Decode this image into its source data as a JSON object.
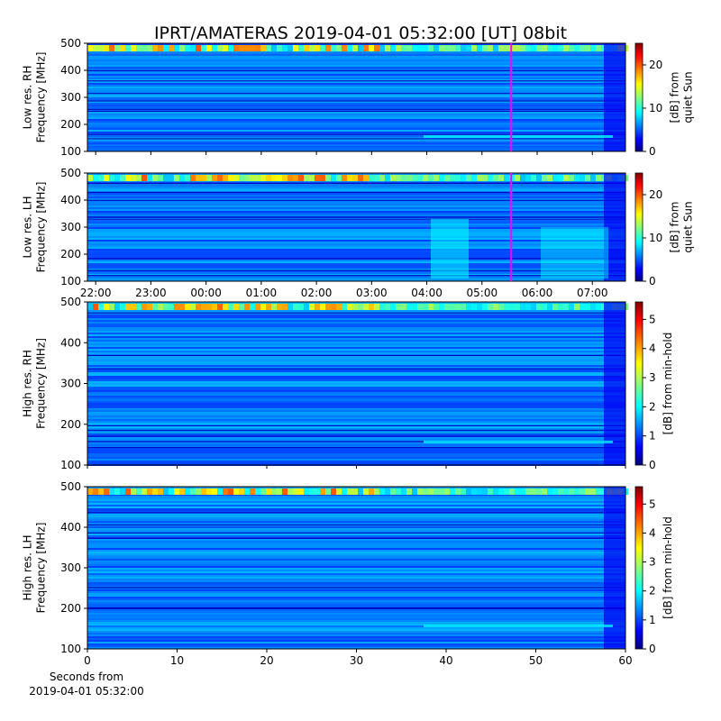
{
  "chart_data": [
    {
      "type": "spectrogram",
      "title": "IPRT/AMATERAS 2019-04-01 05:32:00 [UT]   08bit",
      "ylabel": "Low res. RH\nFrequency [MHz]",
      "ylim": [
        100,
        500
      ],
      "yticks": [
        100,
        200,
        300,
        400,
        500
      ],
      "xlim": [
        21.85,
        31.6
      ],
      "marker": {
        "x": 29.53,
        "color": "#ff00ff"
      },
      "colormap": "jet",
      "clim": [
        0,
        25
      ],
      "cticks": [
        0,
        10,
        20
      ],
      "colorbar_label": "[dB] from\nquiet Sun"
    },
    {
      "type": "spectrogram",
      "ylabel": "Low res. LH\nFrequency [MHz]",
      "ylim": [
        100,
        500
      ],
      "yticks": [
        100,
        200,
        300,
        400,
        500
      ],
      "xlim": [
        21.85,
        31.6
      ],
      "xticks": [
        {
          "value": 22,
          "label": "22:00"
        },
        {
          "value": 23,
          "label": "23:00"
        },
        {
          "value": 24,
          "label": "00:00"
        },
        {
          "value": 25,
          "label": "01:00"
        },
        {
          "value": 26,
          "label": "02:00"
        },
        {
          "value": 27,
          "label": "03:00"
        },
        {
          "value": 28,
          "label": "04:00"
        },
        {
          "value": 29,
          "label": "05:00"
        },
        {
          "value": 30,
          "label": "06:00"
        },
        {
          "value": 31,
          "label": "07:00"
        }
      ],
      "marker": {
        "x": 29.53,
        "color": "#ff00ff"
      },
      "colormap": "jet",
      "clim": [
        0,
        25
      ],
      "cticks": [
        0,
        10,
        20
      ],
      "colorbar_label": "[dB] from\nquiet Sun"
    },
    {
      "type": "spectrogram",
      "ylabel": "High res. RH\nFrequency [MHz]",
      "ylim": [
        100,
        500
      ],
      "yticks": [
        100,
        200,
        300,
        400,
        500
      ],
      "xlim": [
        0,
        60
      ],
      "colormap": "jet",
      "clim": [
        0,
        5.6
      ],
      "cticks": [
        0,
        1,
        2,
        3,
        4,
        5
      ],
      "colorbar_label": "[dB] from min-hold"
    },
    {
      "type": "spectrogram",
      "ylabel": "High res. LH\nFrequency [MHz]",
      "ylim": [
        100,
        500
      ],
      "yticks": [
        100,
        200,
        300,
        400,
        500
      ],
      "xlim": [
        0,
        60
      ],
      "xticks": [
        0,
        10,
        20,
        30,
        40,
        50,
        60
      ],
      "xlabel": "Seconds from\n2019-04-01 05:32:00",
      "colormap": "jet",
      "clim": [
        0,
        5.6
      ],
      "cticks": [
        0,
        1,
        2,
        3,
        4,
        5
      ],
      "colorbar_label": "[dB] from min-hold"
    }
  ]
}
